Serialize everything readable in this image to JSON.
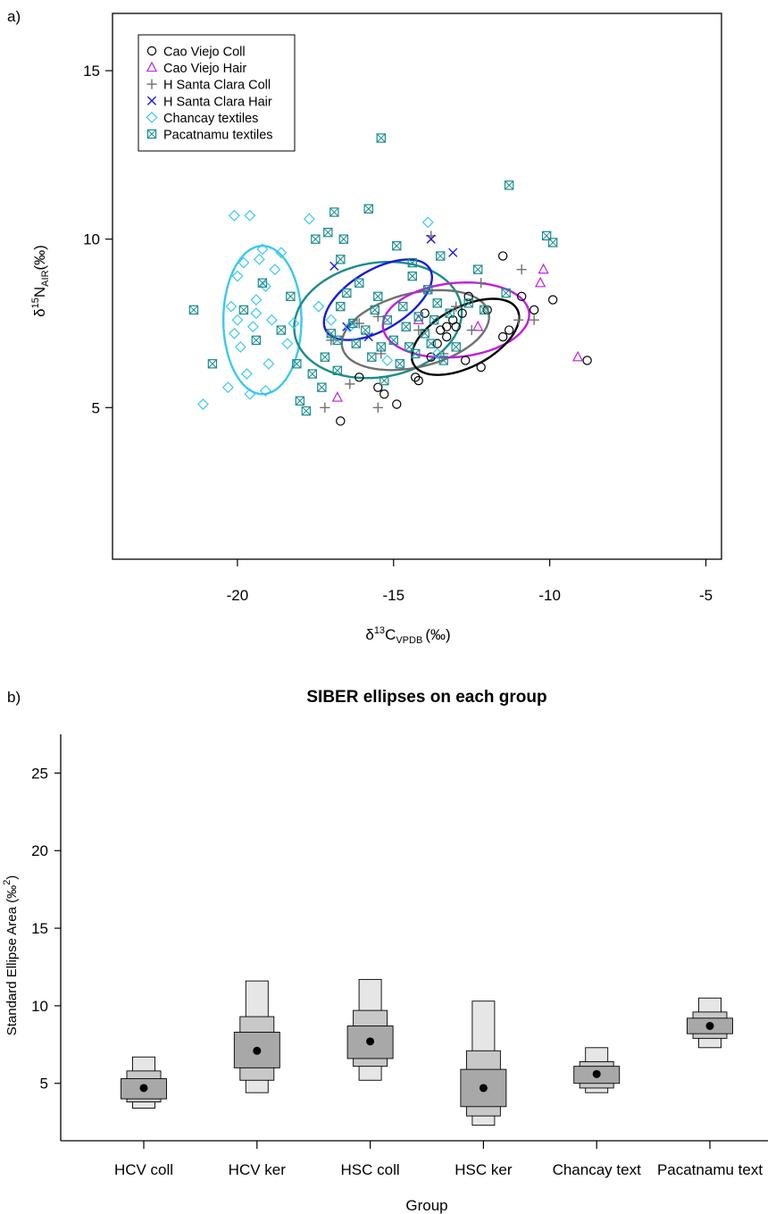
{
  "chart_data": [
    {
      "panel_label": "a)",
      "type": "scatter",
      "title": "",
      "xlabel": {
        "delta": "δ",
        "sup": "13",
        "element": "C",
        "sub": "VPDB",
        "unit": "(‰)"
      },
      "ylabel": {
        "delta": "δ",
        "sup": "15",
        "element": "N",
        "sub": "AIR",
        "unit": "(‰)"
      },
      "xlim": [
        -24,
        -4.5
      ],
      "ylim": [
        0.5,
        16.7
      ],
      "xticks": [
        -20,
        -15,
        -10,
        -5
      ],
      "xtick_labels": [
        "-20",
        "-15",
        "-10",
        "-5"
      ],
      "yticks": [
        5,
        10,
        15
      ],
      "ytick_labels": [
        "5",
        "10",
        "15"
      ],
      "grid": false,
      "legend_position": "top-left",
      "colors": {
        "cao_viejo_coll": "#000000",
        "cao_viejo_hair": "#c01ee0",
        "hsc_coll": "#707070",
        "hsc_hair": "#1a1adb",
        "chancay": "#3cc8f0",
        "pacatnamu": "#1a8c8c"
      },
      "series": [
        {
          "name": "Cao Viejo Coll",
          "marker": "circle",
          "color": "#000000",
          "points": [
            [
              -16.7,
              4.6
            ],
            [
              -16.1,
              5.9
            ],
            [
              -15.5,
              5.6
            ],
            [
              -15.3,
              5.4
            ],
            [
              -14.9,
              5.1
            ],
            [
              -14.3,
              5.9
            ],
            [
              -14.2,
              5.8
            ],
            [
              -14.0,
              7.8
            ],
            [
              -13.8,
              6.5
            ],
            [
              -13.6,
              6.9
            ],
            [
              -13.5,
              7.3
            ],
            [
              -13.3,
              7.4
            ],
            [
              -13.3,
              7.1
            ],
            [
              -13.1,
              7.6
            ],
            [
              -13.0,
              7.4
            ],
            [
              -12.8,
              7.8
            ],
            [
              -12.7,
              6.4
            ],
            [
              -12.6,
              8.3
            ],
            [
              -12.2,
              6.2
            ],
            [
              -12.0,
              7.9
            ],
            [
              -11.5,
              7.1
            ],
            [
              -11.3,
              7.3
            ],
            [
              -11.5,
              9.5
            ],
            [
              -10.9,
              8.3
            ],
            [
              -10.5,
              7.9
            ],
            [
              -9.9,
              8.2
            ],
            [
              -8.8,
              6.4
            ]
          ]
        },
        {
          "name": "Cao Viejo Hair",
          "marker": "triangle",
          "color": "#c01ee0",
          "points": [
            [
              -16.8,
              5.3
            ],
            [
              -14.2,
              7.6
            ],
            [
              -12.3,
              7.4
            ],
            [
              -10.2,
              9.1
            ],
            [
              -10.3,
              8.7
            ],
            [
              -9.1,
              6.5
            ]
          ]
        },
        {
          "name": "H Santa Clara Coll",
          "marker": "plus",
          "color": "#707070",
          "points": [
            [
              -17.2,
              5.0
            ],
            [
              -16.4,
              5.7
            ],
            [
              -15.5,
              5.0
            ],
            [
              -15.4,
              6.6
            ],
            [
              -15.5,
              7.7
            ],
            [
              -14.2,
              7.3
            ],
            [
              -13.4,
              6.6
            ],
            [
              -13.0,
              8.0
            ],
            [
              -12.5,
              7.3
            ],
            [
              -12.2,
              8.7
            ],
            [
              -11.0,
              7.6
            ],
            [
              -10.9,
              9.1
            ],
            [
              -10.5,
              7.6
            ],
            [
              -13.8,
              10.1
            ],
            [
              -16.1,
              7.5
            ],
            [
              -17.0,
              7.0
            ]
          ]
        },
        {
          "name": "H Santa Clara Hair",
          "marker": "cross",
          "color": "#1a1adb",
          "points": [
            [
              -16.9,
              9.2
            ],
            [
              -13.8,
              10.0
            ],
            [
              -13.1,
              9.6
            ],
            [
              -16.5,
              7.4
            ],
            [
              -15.8,
              7.1
            ]
          ]
        },
        {
          "name": "Chancay textiles",
          "marker": "diamond",
          "color": "#3cc8f0",
          "points": [
            [
              -21.1,
              5.1
            ],
            [
              -20.3,
              5.6
            ],
            [
              -20.1,
              10.7
            ],
            [
              -19.6,
              10.7
            ],
            [
              -20.0,
              8.9
            ],
            [
              -20.2,
              8.0
            ],
            [
              -20.0,
              7.6
            ],
            [
              -19.9,
              6.8
            ],
            [
              -19.7,
              6.0
            ],
            [
              -19.6,
              5.4
            ],
            [
              -19.5,
              7.4
            ],
            [
              -19.4,
              8.2
            ],
            [
              -19.3,
              9.4
            ],
            [
              -19.2,
              9.7
            ],
            [
              -19.1,
              8.6
            ],
            [
              -19.0,
              6.3
            ],
            [
              -19.1,
              5.5
            ],
            [
              -18.9,
              7.6
            ],
            [
              -18.8,
              9.1
            ],
            [
              -18.6,
              9.6
            ],
            [
              -18.4,
              6.9
            ],
            [
              -18.2,
              7.5
            ],
            [
              -17.7,
              10.6
            ],
            [
              -17.4,
              8.0
            ],
            [
              -17.0,
              7.6
            ],
            [
              -16.4,
              7.4
            ],
            [
              -15.2,
              6.4
            ],
            [
              -13.9,
              10.5
            ],
            [
              -13.6,
              6.6
            ],
            [
              -19.8,
              9.3
            ],
            [
              -20.1,
              7.2
            ],
            [
              -19.4,
              7.8
            ]
          ]
        },
        {
          "name": "Pacatnamu textiles",
          "marker": "boxcross",
          "color": "#1a8c8c",
          "points": [
            [
              -21.4,
              7.9
            ],
            [
              -20.8,
              6.3
            ],
            [
              -19.8,
              7.9
            ],
            [
              -19.4,
              7.0
            ],
            [
              -19.2,
              8.7
            ],
            [
              -18.6,
              7.3
            ],
            [
              -18.3,
              8.3
            ],
            [
              -18.1,
              6.3
            ],
            [
              -18.0,
              5.2
            ],
            [
              -17.8,
              4.9
            ],
            [
              -17.6,
              6.0
            ],
            [
              -17.3,
              5.6
            ],
            [
              -17.2,
              6.5
            ],
            [
              -17.0,
              7.2
            ],
            [
              -16.8,
              6.1
            ],
            [
              -16.8,
              7.0
            ],
            [
              -16.7,
              8.0
            ],
            [
              -16.5,
              8.4
            ],
            [
              -16.3,
              7.5
            ],
            [
              -16.2,
              6.9
            ],
            [
              -16.1,
              8.7
            ],
            [
              -15.9,
              7.3
            ],
            [
              -15.7,
              6.5
            ],
            [
              -15.6,
              7.9
            ],
            [
              -15.5,
              8.3
            ],
            [
              -15.4,
              6.8
            ],
            [
              -15.3,
              5.8
            ],
            [
              -15.2,
              7.6
            ],
            [
              -15.0,
              7.0
            ],
            [
              -14.8,
              6.3
            ],
            [
              -14.7,
              8.0
            ],
            [
              -14.6,
              7.4
            ],
            [
              -14.5,
              6.8
            ],
            [
              -14.4,
              8.9
            ],
            [
              -14.3,
              6.6
            ],
            [
              -14.2,
              7.7
            ],
            [
              -14.0,
              7.2
            ],
            [
              -13.9,
              8.5
            ],
            [
              -13.8,
              6.9
            ],
            [
              -13.7,
              7.6
            ],
            [
              -13.6,
              8.1
            ],
            [
              -13.5,
              9.5
            ],
            [
              -13.4,
              6.4
            ],
            [
              -13.2,
              7.8
            ],
            [
              -13.0,
              6.8
            ],
            [
              -12.6,
              8.1
            ],
            [
              -12.3,
              9.1
            ],
            [
              -12.1,
              7.9
            ],
            [
              -11.4,
              8.4
            ],
            [
              -11.3,
              11.6
            ],
            [
              -10.1,
              10.1
            ],
            [
              -9.9,
              9.9
            ],
            [
              -15.4,
              13.0
            ],
            [
              -15.8,
              10.9
            ],
            [
              -16.9,
              10.8
            ],
            [
              -17.1,
              10.2
            ],
            [
              -16.7,
              9.4
            ],
            [
              -14.9,
              9.8
            ],
            [
              -14.4,
              9.3
            ],
            [
              -17.5,
              10.0
            ],
            [
              -16.6,
              10.0
            ]
          ]
        }
      ],
      "ellipses": [
        {
          "group": "Chancay textiles",
          "color": "#3cc8f0",
          "cx": -19.2,
          "cy": 7.6,
          "rx": 1.25,
          "ry": 2.2,
          "angle_deg": 0
        },
        {
          "group": "Pacatnamu textiles",
          "color": "#1a8c8c",
          "cx": -15.5,
          "cy": 7.6,
          "rx": 2.7,
          "ry": 1.7,
          "angle_deg": 8
        },
        {
          "group": "H Santa Clara Hair",
          "color": "#1a1adb",
          "cx": -15.5,
          "cy": 8.2,
          "rx": 1.9,
          "ry": 0.9,
          "angle_deg": 28
        },
        {
          "group": "H Santa Clara Coll",
          "color": "#707070",
          "cx": -14.3,
          "cy": 7.3,
          "rx": 2.4,
          "ry": 1.1,
          "angle_deg": 12
        },
        {
          "group": "Cao Viejo Hair",
          "color": "#c01ee0",
          "cx": -13.0,
          "cy": 7.6,
          "rx": 2.35,
          "ry": 1.1,
          "angle_deg": 5
        },
        {
          "group": "Cao Viejo Coll",
          "color": "#000000",
          "cx": -12.7,
          "cy": 7.1,
          "rx": 1.85,
          "ry": 0.9,
          "angle_deg": 25
        }
      ]
    },
    {
      "panel_label": "b)",
      "type": "bar",
      "subtype": "density-box",
      "title": "SIBER ellipses on each group",
      "xlabel": "Group",
      "ylabel": {
        "text": "Standard Ellipse Area (‰",
        "sup": "2",
        "close": ")"
      },
      "ylim": [
        1.3,
        27.5
      ],
      "yticks": [
        5,
        10,
        15,
        20,
        25
      ],
      "ytick_labels": [
        "5",
        "10",
        "15",
        "20",
        "25"
      ],
      "categories": [
        "HCV coll",
        "HCV ker",
        "HSC coll",
        "HSC ker",
        "Chancay text",
        "Pacatnamu text"
      ],
      "grid": false,
      "colors": {
        "outer": "#e6e6e6",
        "middle": "#c8c8c8",
        "inner": "#a8a8a8",
        "border": "#000000"
      },
      "groups": [
        {
          "category": "HCV coll",
          "mode": 4.7,
          "inner": [
            4.0,
            5.3
          ],
          "middle": [
            3.8,
            5.8
          ],
          "outer": [
            3.4,
            6.7
          ]
        },
        {
          "category": "HCV ker",
          "mode": 7.1,
          "inner": [
            6.0,
            8.3
          ],
          "middle": [
            5.2,
            9.3
          ],
          "outer": [
            4.4,
            11.6
          ]
        },
        {
          "category": "HSC coll",
          "mode": 7.7,
          "inner": [
            6.6,
            8.7
          ],
          "middle": [
            6.1,
            9.7
          ],
          "outer": [
            5.2,
            11.7
          ]
        },
        {
          "category": "HSC ker",
          "mode": 4.7,
          "inner": [
            3.5,
            5.9
          ],
          "middle": [
            2.9,
            7.1
          ],
          "outer": [
            2.3,
            10.3
          ]
        },
        {
          "category": "Chancay text",
          "mode": 5.6,
          "inner": [
            5.0,
            6.1
          ],
          "middle": [
            4.7,
            6.4
          ],
          "outer": [
            4.4,
            7.3
          ]
        },
        {
          "category": "Pacatnamu text",
          "mode": 8.7,
          "inner": [
            8.2,
            9.2
          ],
          "middle": [
            7.9,
            9.6
          ],
          "outer": [
            7.3,
            10.5
          ]
        }
      ]
    }
  ]
}
